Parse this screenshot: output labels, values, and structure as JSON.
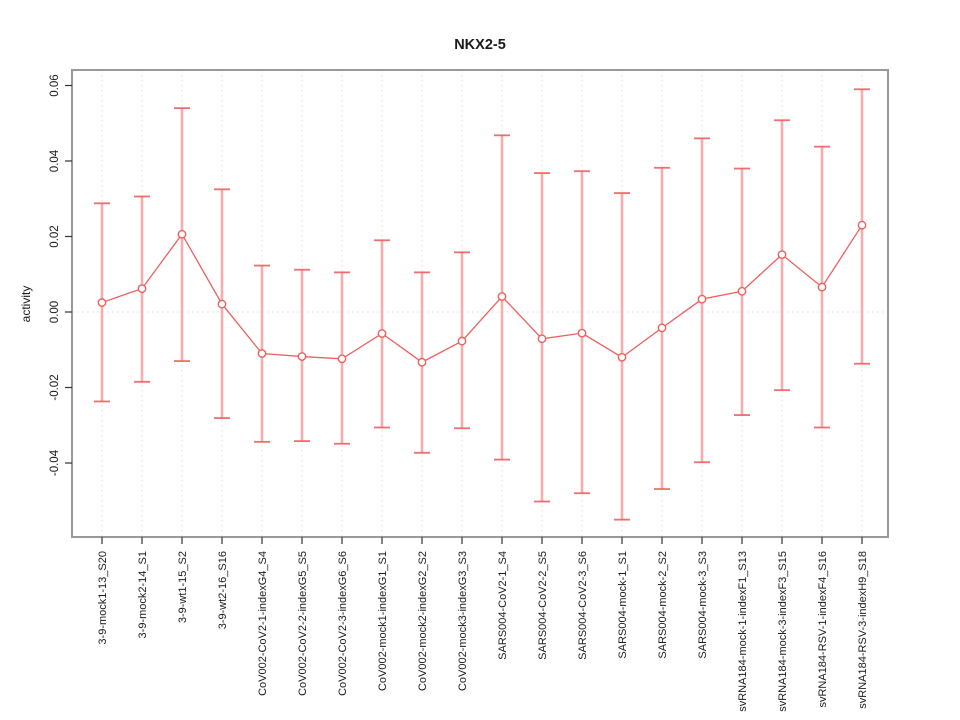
{
  "chart_data": {
    "type": "line",
    "subtype": "points-with-error-bars",
    "title": "NKX2-5",
    "xlabel": "",
    "ylabel": "activity",
    "legend": "none",
    "grid": "vertical dotted gridline per category; dotted horizontal line at y=0",
    "ylim": [
      -0.0605,
      0.0645
    ],
    "yticks": [
      -0.04,
      -0.02,
      0,
      0.02,
      0.04,
      0.06
    ],
    "ytick_labels": [
      "-0.04",
      "-0.02",
      "0.00",
      "0.02",
      "0.04",
      "0.06"
    ],
    "categories": [
      "3-9-mock1-13_S20",
      "3-9-mock2-14_S1",
      "3-9-wt1-15_S2",
      "3-9-wt2-16_S16",
      "CoV002-CoV2-1-indexG4_S4",
      "CoV002-CoV2-2-indexG5_S5",
      "CoV002-CoV2-3-indexG6_S6",
      "CoV002-mock1-indexG1_S1",
      "CoV002-mock2-indexG2_S2",
      "CoV002-mock3-indexG3_S3",
      "SARS004-CoV2-1_S4",
      "SARS004-CoV2-2_S5",
      "SARS004-CoV2-3_S6",
      "SARS004-mock-1_S1",
      "SARS004-mock-2_S2",
      "SARS004-mock-3_S3",
      "svRNA184-mock-1-indexF1_S13",
      "svRNA184-mock-3-indexF3_S15",
      "svRNA184-RSV-1-indexF4_S16",
      "svRNA184-RSV-3-indexH9_S18"
    ],
    "series": [
      {
        "name": "activity",
        "point_style": "open-circle",
        "values": [
          0.0025,
          0.0062,
          0.0206,
          0.0021,
          -0.011,
          -0.0118,
          -0.0124,
          -0.0057,
          -0.0133,
          -0.0077,
          0.0041,
          -0.0071,
          -0.0056,
          -0.012,
          -0.0042,
          0.0034,
          0.0055,
          0.0152,
          0.0066,
          0.023
        ],
        "error_high": [
          0.0288,
          0.0306,
          0.054,
          0.0325,
          0.0123,
          0.0112,
          0.0105,
          0.019,
          0.0105,
          0.0158,
          0.0468,
          0.0368,
          0.0373,
          0.0315,
          0.0382,
          0.046,
          0.038,
          0.0508,
          0.0438,
          0.059
        ],
        "error_low": [
          -0.0237,
          -0.0185,
          -0.013,
          -0.0281,
          -0.0344,
          -0.0342,
          -0.0349,
          -0.0306,
          -0.0373,
          -0.0308,
          -0.0391,
          -0.0502,
          -0.048,
          -0.055,
          -0.0469,
          -0.0398,
          -0.0273,
          -0.0207,
          -0.0306,
          -0.0137
        ]
      }
    ],
    "colors": {
      "series": "#ee5f5f",
      "error_bar_shaft": "#f4a0a0",
      "error_bar_cap": "#ee5f5f",
      "gridline": "#dedede",
      "zero_line": "#d8d8d8",
      "plot_border": "#999999",
      "tick": "#333333",
      "text": "#1a1a1a",
      "background": "#ffffff"
    }
  }
}
